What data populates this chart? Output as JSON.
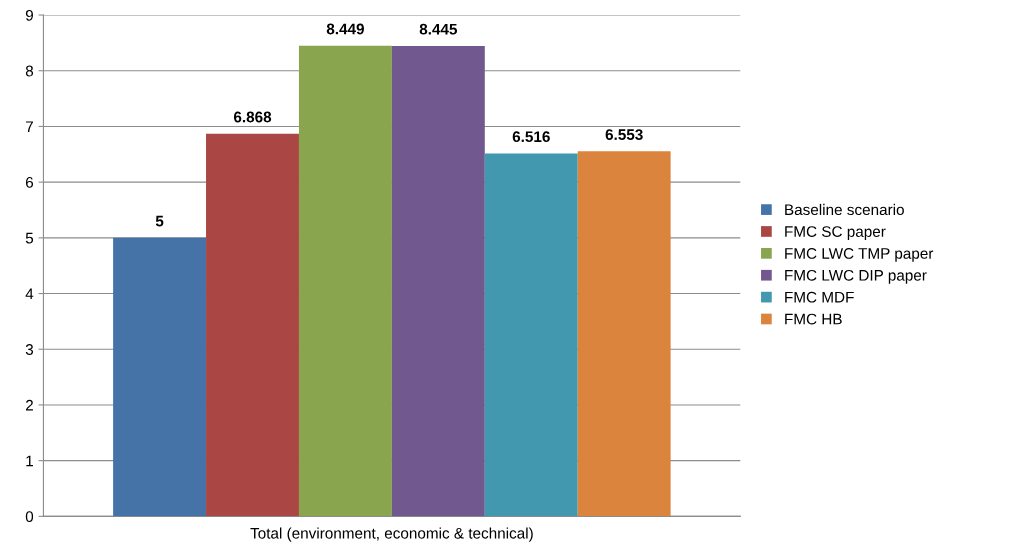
{
  "chart_data": {
    "type": "bar",
    "categories": [
      "Total (environment, economic & technical)"
    ],
    "series": [
      {
        "name": "Baseline scenario",
        "color": "#4572a7",
        "values": [
          5
        ]
      },
      {
        "name": "FMC SC paper",
        "color": "#aa4643",
        "values": [
          6.868
        ]
      },
      {
        "name": "FMC LWC TMP paper",
        "color": "#89a54e",
        "values": [
          8.449
        ]
      },
      {
        "name": "FMC LWC DIP paper",
        "color": "#71588f",
        "values": [
          8.445
        ]
      },
      {
        "name": "FMC MDF",
        "color": "#4198af",
        "values": [
          6.516
        ]
      },
      {
        "name": "FMC HB",
        "color": "#db843d",
        "values": [
          6.553
        ]
      }
    ],
    "ylim": [
      0,
      9
    ],
    "yticks": [
      0,
      1,
      2,
      3,
      4,
      5,
      6,
      7,
      8,
      9
    ],
    "grid": "y",
    "legend": "right",
    "data_labels": true
  }
}
